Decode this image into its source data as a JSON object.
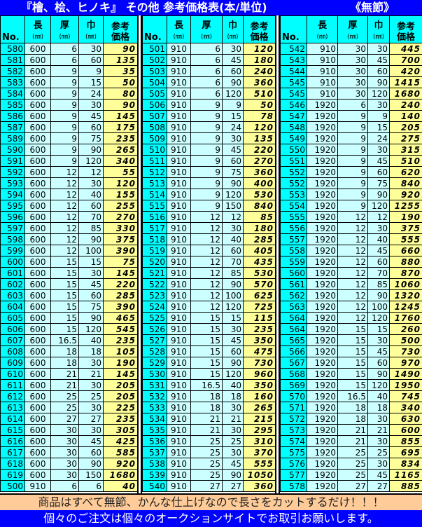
{
  "title": {
    "main": "『檜、桧、ヒノキ』 その他 参考価格表(本/単位)",
    "sub": "《無節》"
  },
  "headers": {
    "no": "No.",
    "length": "長",
    "thickness": "厚",
    "width": "巾",
    "unit": "(㎜)",
    "price_1": "参考",
    "price_2": "価格"
  },
  "colors": {
    "title_bg": "#0000ff",
    "no_col": "#00ffff",
    "value_col": "#ccffff",
    "price_col": "#ffff99",
    "footer1_bg": "#ffcc99"
  },
  "tables": [
    {
      "rows": [
        [
          "580",
          "600",
          "6",
          "30",
          "90"
        ],
        [
          "581",
          "600",
          "6",
          "60",
          "135"
        ],
        [
          "582",
          "600",
          "9",
          "9",
          "35"
        ],
        [
          "583",
          "600",
          "9",
          "15",
          "50"
        ],
        [
          "584",
          "600",
          "9",
          "24",
          "80"
        ],
        [
          "585",
          "600",
          "9",
          "30",
          "90"
        ],
        [
          "586",
          "600",
          "9",
          "45",
          "145"
        ],
        [
          "587",
          "600",
          "9",
          "60",
          "175"
        ],
        [
          "589",
          "600",
          "9",
          "75",
          "235"
        ],
        [
          "590",
          "600",
          "9",
          "90",
          "265"
        ],
        [
          "591",
          "600",
          "9",
          "120",
          "340"
        ],
        [
          "592",
          "600",
          "12",
          "12",
          "55"
        ],
        [
          "593",
          "600",
          "12",
          "30",
          "120"
        ],
        [
          "594",
          "600",
          "12",
          "40",
          "155"
        ],
        [
          "595",
          "600",
          "12",
          "60",
          "255"
        ],
        [
          "596",
          "600",
          "12",
          "70",
          "270"
        ],
        [
          "597",
          "600",
          "12",
          "85",
          "330"
        ],
        [
          "598",
          "600",
          "12",
          "90",
          "375"
        ],
        [
          "599",
          "600",
          "12",
          "100",
          "390"
        ],
        [
          "600",
          "600",
          "15",
          "15",
          "75"
        ],
        [
          "601",
          "600",
          "15",
          "30",
          "145"
        ],
        [
          "602",
          "600",
          "15",
          "45",
          "220"
        ],
        [
          "603",
          "600",
          "15",
          "60",
          "285"
        ],
        [
          "604",
          "600",
          "15",
          "75",
          "390"
        ],
        [
          "605",
          "600",
          "15",
          "90",
          "465"
        ],
        [
          "606",
          "600",
          "15",
          "120",
          "545"
        ],
        [
          "607",
          "600",
          "16.5",
          "40",
          "235"
        ],
        [
          "608",
          "600",
          "18",
          "18",
          "105"
        ],
        [
          "609",
          "600",
          "18",
          "30",
          "190"
        ],
        [
          "610",
          "600",
          "21",
          "21",
          "145"
        ],
        [
          "611",
          "600",
          "21",
          "30",
          "205"
        ],
        [
          "612",
          "600",
          "25",
          "25",
          "205"
        ],
        [
          "613",
          "600",
          "25",
          "30",
          "225"
        ],
        [
          "614",
          "600",
          "27",
          "27",
          "235"
        ],
        [
          "615",
          "600",
          "30",
          "30",
          "305"
        ],
        [
          "616",
          "600",
          "30",
          "45",
          "425"
        ],
        [
          "617",
          "600",
          "30",
          "60",
          "585"
        ],
        [
          "618",
          "600",
          "30",
          "90",
          "920"
        ],
        [
          "619",
          "600",
          "30",
          "150",
          "1680"
        ],
        [
          "500",
          "910",
          "6",
          "6",
          "40"
        ]
      ]
    },
    {
      "rows": [
        [
          "501",
          "910",
          "6",
          "30",
          "120"
        ],
        [
          "502",
          "910",
          "6",
          "45",
          "180"
        ],
        [
          "503",
          "910",
          "6",
          "60",
          "240"
        ],
        [
          "504",
          "910",
          "6",
          "90",
          "360"
        ],
        [
          "505",
          "910",
          "6",
          "120",
          "510"
        ],
        [
          "506",
          "910",
          "9",
          "9",
          "50"
        ],
        [
          "507",
          "910",
          "9",
          "15",
          "78"
        ],
        [
          "508",
          "910",
          "9",
          "24",
          "120"
        ],
        [
          "509",
          "910",
          "9",
          "30",
          "135"
        ],
        [
          "510",
          "910",
          "9",
          "45",
          "220"
        ],
        [
          "511",
          "910",
          "9",
          "60",
          "270"
        ],
        [
          "512",
          "910",
          "9",
          "75",
          "360"
        ],
        [
          "513",
          "910",
          "9",
          "90",
          "400"
        ],
        [
          "514",
          "910",
          "9",
          "120",
          "530"
        ],
        [
          "515",
          "910",
          "9",
          "150",
          "840"
        ],
        [
          "516",
          "910",
          "12",
          "12",
          "85"
        ],
        [
          "517",
          "910",
          "12",
          "30",
          "180"
        ],
        [
          "518",
          "910",
          "12",
          "40",
          "285"
        ],
        [
          "519",
          "910",
          "12",
          "60",
          "405"
        ],
        [
          "520",
          "910",
          "12",
          "70",
          "435"
        ],
        [
          "521",
          "910",
          "12",
          "85",
          "530"
        ],
        [
          "522",
          "910",
          "12",
          "90",
          "570"
        ],
        [
          "523",
          "910",
          "12",
          "100",
          "625"
        ],
        [
          "524",
          "910",
          "12",
          "120",
          "725"
        ],
        [
          "525",
          "910",
          "15",
          "15",
          "115"
        ],
        [
          "526",
          "910",
          "15",
          "30",
          "235"
        ],
        [
          "527",
          "910",
          "15",
          "45",
          "350"
        ],
        [
          "528",
          "910",
          "15",
          "60",
          "475"
        ],
        [
          "529",
          "910",
          "15",
          "90",
          "730"
        ],
        [
          "530",
          "910",
          "15",
          "120",
          "960"
        ],
        [
          "531",
          "910",
          "16.5",
          "40",
          "350"
        ],
        [
          "532",
          "910",
          "18",
          "18",
          "160"
        ],
        [
          "533",
          "910",
          "18",
          "30",
          "265"
        ],
        [
          "534",
          "910",
          "21",
          "21",
          "215"
        ],
        [
          "535",
          "910",
          "21",
          "30",
          "295"
        ],
        [
          "536",
          "910",
          "25",
          "25",
          "310"
        ],
        [
          "537",
          "910",
          "25",
          "30",
          "370"
        ],
        [
          "538",
          "910",
          "25",
          "45",
          "555"
        ],
        [
          "539",
          "910",
          "25",
          "90",
          "1050"
        ],
        [
          "540",
          "910",
          "27",
          "27",
          "360"
        ]
      ]
    },
    {
      "rows": [
        [
          "542",
          "910",
          "30",
          "30",
          "445"
        ],
        [
          "543",
          "910",
          "30",
          "45",
          "700"
        ],
        [
          "544",
          "910",
          "30",
          "60",
          "420"
        ],
        [
          "545",
          "910",
          "30",
          "90",
          "1415"
        ],
        [
          "545",
          "910",
          "30",
          "120",
          "1680"
        ],
        [
          "546",
          "1920",
          "6",
          "30",
          "240"
        ],
        [
          "547",
          "1920",
          "9",
          "9",
          "140"
        ],
        [
          "548",
          "1920",
          "9",
          "15",
          "205"
        ],
        [
          "549",
          "1920",
          "9",
          "24",
          "275"
        ],
        [
          "550",
          "1920",
          "9",
          "30",
          "315"
        ],
        [
          "551",
          "1920",
          "9",
          "45",
          "510"
        ],
        [
          "552",
          "1920",
          "9",
          "60",
          "620"
        ],
        [
          "552",
          "1920",
          "9",
          "75",
          "840"
        ],
        [
          "553",
          "1920",
          "9",
          "90",
          "920"
        ],
        [
          "554",
          "1920",
          "9",
          "120",
          "1255"
        ],
        [
          "555",
          "1920",
          "12",
          "12",
          "190"
        ],
        [
          "556",
          "1920",
          "12",
          "30",
          "375"
        ],
        [
          "557",
          "1920",
          "12",
          "40",
          "555"
        ],
        [
          "558",
          "1920",
          "12",
          "45",
          "660"
        ],
        [
          "559",
          "1920",
          "12",
          "60",
          "880"
        ],
        [
          "560",
          "1920",
          "12",
          "70",
          "870"
        ],
        [
          "561",
          "1920",
          "12",
          "85",
          "1060"
        ],
        [
          "562",
          "1920",
          "12",
          "90",
          "1320"
        ],
        [
          "563",
          "1920",
          "12",
          "100",
          "1245"
        ],
        [
          "564",
          "1920",
          "12",
          "120",
          "1760"
        ],
        [
          "564",
          "1920",
          "15",
          "15",
          "260"
        ],
        [
          "565",
          "1920",
          "15",
          "30",
          "500"
        ],
        [
          "566",
          "1920",
          "15",
          "45",
          "730"
        ],
        [
          "567",
          "1920",
          "15",
          "60",
          "970"
        ],
        [
          "568",
          "1920",
          "15",
          "90",
          "1490"
        ],
        [
          "569",
          "1920",
          "15",
          "120",
          "1950"
        ],
        [
          "570",
          "1920",
          "16.5",
          "40",
          "745"
        ],
        [
          "571",
          "1920",
          "18",
          "18",
          "340"
        ],
        [
          "572",
          "1920",
          "18",
          "30",
          "630"
        ],
        [
          "573",
          "1920",
          "21",
          "21",
          "600"
        ],
        [
          "574",
          "1920",
          "21",
          "30",
          "855"
        ],
        [
          "575",
          "1920",
          "25",
          "25",
          "695"
        ],
        [
          "576",
          "1920",
          "25",
          "30",
          "834"
        ],
        [
          "577",
          "1920",
          "25",
          "45",
          "1165"
        ],
        [
          "578",
          "1920",
          "27",
          "27",
          "885"
        ]
      ]
    }
  ],
  "footer": {
    "line1": "商品はすべて無節、かんな仕上げなので長さをカットするだけ！！！",
    "line2": "個々のご注文は個々のオークションサイトでお取引お願いします。"
  }
}
